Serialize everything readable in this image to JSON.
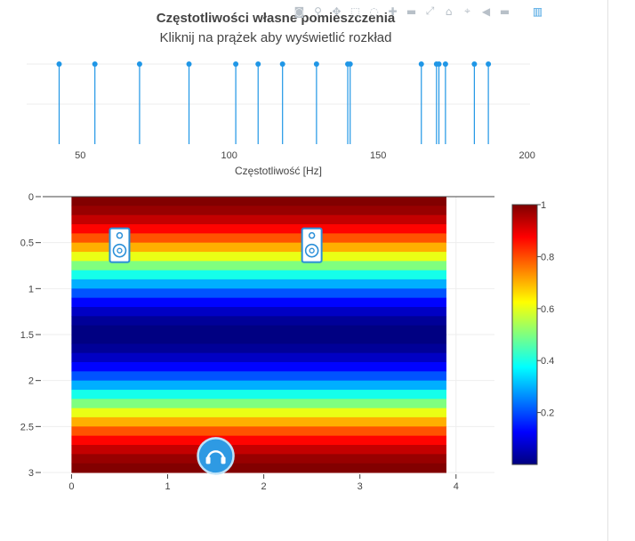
{
  "title": "Częstotliwości własne pomieszczenia",
  "subtitle": "Kliknij na prążek aby wyświetlić rozkład",
  "modebar": [
    "camera-icon",
    "zoom-icon",
    "pan-icon",
    "box-select-icon",
    "lasso-icon",
    "zoom-in-icon",
    "zoom-out-icon",
    "autoscale-icon",
    "reset-axes-icon",
    "spike-lines-icon",
    "hover-closest-icon",
    "hover-compare-icon",
    "plotly-logo-icon"
  ],
  "modebar_glyphs": [
    "◙",
    "⚲",
    "✥",
    "⬚",
    "◌",
    "✚",
    "▬",
    "⤢",
    "⌂",
    "⌖",
    "◀",
    "▬",
    "▥"
  ],
  "chart_data": [
    {
      "type": "stem",
      "xlabel": "Częstotliwość [Hz]",
      "xlim": [
        32,
        201
      ],
      "xticks": [
        50,
        100,
        150,
        200
      ],
      "marker_color": "#1f96e6",
      "x": [
        42.9,
        54.9,
        69.9,
        86.5,
        102.2,
        109.7,
        117.9,
        129.3,
        139.8,
        140.6,
        164.5,
        169.6,
        170.4,
        172.6,
        182.3,
        187.0
      ]
    },
    {
      "type": "heatmap",
      "x_range": [
        0,
        3.9
      ],
      "y_range": [
        0,
        3
      ],
      "xlim": [
        -0.3,
        4.4
      ],
      "ylim": [
        0,
        3
      ],
      "y_reversed": true,
      "xticks": [
        0,
        1,
        2,
        3,
        4
      ],
      "yticks": [
        0,
        0.5,
        1,
        1.5,
        2,
        2.5,
        3
      ],
      "ytick_labels": [
        "0",
        "0.5",
        "1",
        "1.5",
        "2",
        "2.5",
        "3"
      ],
      "colorscale": "jet",
      "colorbar_ticks": [
        0.2,
        0.4,
        0.6,
        0.8,
        1
      ],
      "profile": "cos^2(pi*y/3), varies with y only",
      "speakers": [
        {
          "x": 0.5,
          "y": 0.5
        },
        {
          "x": 2.5,
          "y": 0.5
        }
      ],
      "listener": {
        "x": 1.5,
        "y": 2.8
      }
    }
  ]
}
